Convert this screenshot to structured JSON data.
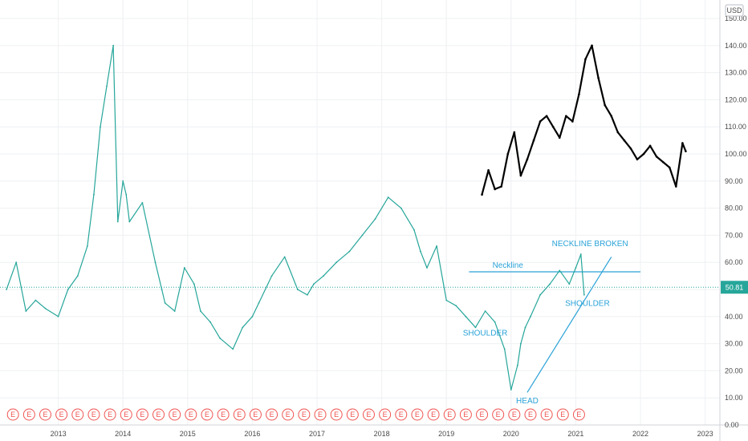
{
  "chart_data": {
    "type": "line",
    "currency": "USD",
    "last_price": "50.81",
    "x_ticks": [
      "2013",
      "2014",
      "2015",
      "2016",
      "2017",
      "2018",
      "2019",
      "2020",
      "2021",
      "2022",
      "2023"
    ],
    "y_ticks": [
      "0.00",
      "10.00",
      "20.00",
      "30.00",
      "40.00",
      "50.00",
      "60.00",
      "70.00",
      "80.00",
      "90.00",
      "100.00",
      "110.00",
      "120.00",
      "130.00",
      "140.00",
      "150.00"
    ],
    "ylim": [
      0,
      155
    ],
    "grid": true,
    "series": [
      {
        "color": "#26a69a",
        "x": [
          2012.2,
          2012.35,
          2012.5,
          2012.65,
          2012.8,
          2013.0,
          2013.15,
          2013.3,
          2013.45,
          2013.55,
          2013.65,
          2013.75,
          2013.85,
          2013.92,
          2014.0,
          2014.05,
          2014.1,
          2014.3,
          2014.5,
          2014.6,
          2014.65,
          2014.8,
          2014.95,
          2015.1,
          2015.2,
          2015.35,
          2015.5,
          2015.7,
          2015.85,
          2016.0,
          2016.1,
          2016.3,
          2016.5,
          2016.7,
          2016.85,
          2016.95,
          2017.1,
          2017.3,
          2017.5,
          2017.7,
          2017.9,
          2018.1,
          2018.3,
          2018.5,
          2018.6,
          2018.7,
          2018.85,
          2019.0,
          2019.15,
          2019.3,
          2019.45,
          2019.6,
          2019.75,
          2019.9,
          2020.0,
          2020.1,
          2020.15,
          2020.22,
          2020.3,
          2020.45,
          2020.6,
          2020.75,
          2020.9,
          2021.0,
          2021.08,
          2021.13
        ],
        "y": [
          50,
          60,
          42,
          46,
          43,
          40,
          50,
          55,
          66,
          85,
          110,
          125,
          140,
          75,
          90,
          85,
          75,
          82,
          60,
          50,
          45,
          42,
          58,
          52,
          42,
          38,
          32,
          28,
          36,
          40,
          45,
          55,
          62,
          50,
          48,
          52,
          55,
          60,
          64,
          70,
          76,
          84,
          80,
          72,
          64,
          58,
          66,
          46,
          44,
          40,
          36,
          42,
          38,
          28,
          13,
          22,
          30,
          36,
          40,
          48,
          52,
          57,
          52,
          58,
          63,
          48
        ]
      },
      {
        "color": "#000000",
        "x": [
          2019.55,
          2019.65,
          2019.75,
          2019.85,
          2019.95,
          2020.05,
          2020.15,
          2020.25,
          2020.35,
          2020.45,
          2020.55,
          2020.65,
          2020.75,
          2020.85,
          2020.95,
          2021.05,
          2021.15,
          2021.25,
          2021.35,
          2021.45,
          2021.55,
          2021.65,
          2021.75,
          2021.85,
          2021.95,
          2022.05,
          2022.15,
          2022.25,
          2022.35,
          2022.45,
          2022.55,
          2022.65,
          2022.7
        ],
        "y": [
          85,
          94,
          87,
          88,
          100,
          108,
          92,
          98,
          105,
          112,
          114,
          110,
          106,
          114,
          112,
          122,
          135,
          140,
          128,
          118,
          114,
          108,
          105,
          102,
          98,
          100,
          103,
          99,
          97,
          95,
          88,
          104,
          101
        ]
      }
    ],
    "annotations": [
      {
        "text": "Neckline",
        "x": 2019.95,
        "y": 58
      },
      {
        "text": "NECKLINE BROKEN",
        "x": 2021.22,
        "y": 66
      },
      {
        "text": "SHOULDER",
        "x": 2019.6,
        "y": 33
      },
      {
        "text": "SHOULDER",
        "x": 2021.18,
        "y": 44
      },
      {
        "text": "HEAD",
        "x": 2020.25,
        "y": 8
      }
    ],
    "lines": [
      {
        "name": "neckline",
        "x": [
          2019.35,
          2022.0
        ],
        "y": [
          56.5,
          56.5
        ]
      },
      {
        "name": "trendline",
        "x": [
          2020.25,
          2021.55
        ],
        "y": [
          12,
          62
        ]
      }
    ],
    "earnings_markers": {
      "label": "E",
      "x": [
        2012.05,
        2012.3,
        2012.55,
        2012.8,
        2013.05,
        2013.3,
        2013.55,
        2013.8,
        2014.05,
        2014.3,
        2014.55,
        2014.8,
        2015.05,
        2015.3,
        2015.55,
        2015.8,
        2016.05,
        2016.3,
        2016.55,
        2016.8,
        2017.05,
        2017.3,
        2017.55,
        2017.8,
        2018.05,
        2018.3,
        2018.55,
        2018.8,
        2019.05,
        2019.3,
        2019.55,
        2019.8,
        2020.05,
        2020.3,
        2020.55,
        2020.8,
        2021.05
      ]
    }
  }
}
